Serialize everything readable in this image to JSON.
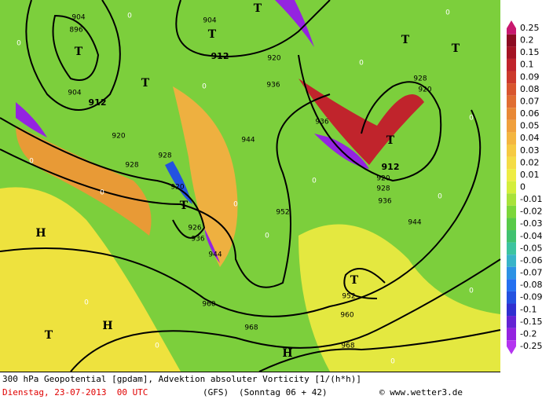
{
  "map": {
    "contour_labels": [
      "904",
      "896",
      "904",
      "912",
      "904",
      "912",
      "920",
      "920",
      "928",
      "920",
      "936",
      "936",
      "944",
      "952",
      "928",
      "920",
      "912",
      "920",
      "928",
      "936",
      "944",
      "928",
      "926",
      "936",
      "944",
      "960",
      "968",
      "960",
      "968",
      "952"
    ],
    "pressure_marks": [
      "T",
      "T",
      "T",
      "T",
      "T",
      "T",
      "T",
      "T",
      "H",
      "H",
      "T",
      "H",
      "T"
    ],
    "zero_labels": [
      "0",
      "0",
      "0",
      "0",
      "0",
      "0",
      "0",
      "0",
      "0",
      "0",
      "0",
      "0",
      "0",
      "0",
      "0",
      "0"
    ]
  },
  "legend": {
    "labels": [
      "0.25",
      "0.2",
      "0.15",
      "0.1",
      "0.09",
      "0.08",
      "0.07",
      "0.06",
      "0.05",
      "0.04",
      "0.03",
      "0.02",
      "0.01",
      "0",
      "-0.01",
      "-0.02",
      "-0.03",
      "-0.04",
      "-0.05",
      "-0.06",
      "-0.07",
      "-0.08",
      "-0.09",
      "-0.1",
      "-0.15",
      "-0.2",
      "-0.25"
    ],
    "colors": [
      "#c8186e",
      "#8c0c22",
      "#a41424",
      "#c0242c",
      "#cc3a2c",
      "#d8562e",
      "#e06e32",
      "#e88836",
      "#f0a03c",
      "#f4b640",
      "#f6ca42",
      "#f4dc46",
      "#eeec44",
      "#d4ee3c",
      "#a8e23a",
      "#7cd63a",
      "#58ca48",
      "#40c270",
      "#3cc4a0",
      "#38b4c8",
      "#2c92e4",
      "#2470f0",
      "#2452e0",
      "#3030d0",
      "#6424d4",
      "#9424e0",
      "#b434f0"
    ]
  },
  "footer": {
    "title": "300 hPa Geopotential [gpdam], Advektion absoluter Vorticity [1/(h*h)]",
    "date": "Dienstag, 23-07-2013  00 UTC",
    "model": "(GFS)",
    "run": "(Sonntag 06 + 42)",
    "credit": "© www.wetter3.de"
  }
}
